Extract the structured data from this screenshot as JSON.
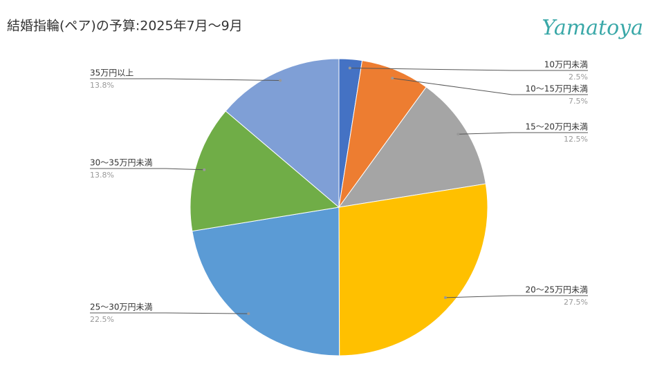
{
  "chart_data": {
    "type": "pie",
    "title": "結婚指輪(ペア)の予算:2025年7月〜9月",
    "logo": "Yamatoya",
    "categories": [
      "10万円未満",
      "10〜15万円未満",
      "15〜20万円未満",
      "20〜25万円未満",
      "25〜30万円未満",
      "30〜35万円未満",
      "35万円以上"
    ],
    "values": [
      2.5,
      7.5,
      12.5,
      27.5,
      22.5,
      13.8,
      13.8
    ],
    "value_labels": [
      "2.5%",
      "7.5%",
      "12.5%",
      "27.5%",
      "22.5%",
      "13.8%",
      "13.8%"
    ],
    "colors": [
      "#4472c4",
      "#ed7d31",
      "#a5a5a5",
      "#ffc000",
      "#5b9bd5",
      "#70ad47",
      "#7f9fd6"
    ]
  }
}
